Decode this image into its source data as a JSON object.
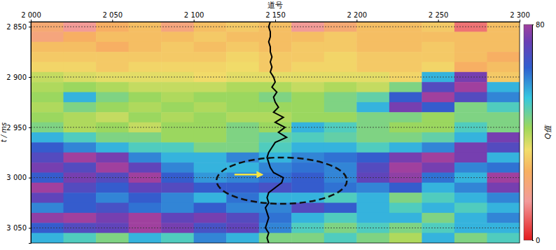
{
  "chart_data": {
    "type": "heatmap",
    "x_label": "道号",
    "y_label": "t / ms",
    "colorbar_label": "Q值",
    "xlim": [
      2000,
      2300
    ],
    "xticks": [
      {
        "value": 2000,
        "label": "2 000"
      },
      {
        "value": 2050,
        "label": "2 050"
      },
      {
        "value": 2100,
        "label": "2 100"
      },
      {
        "value": 2150,
        "label": "2 150"
      },
      {
        "value": 2200,
        "label": "2 200"
      },
      {
        "value": 2250,
        "label": "2 250"
      },
      {
        "value": 2300,
        "label": "2 300"
      }
    ],
    "ylim": [
      2845,
      3065
    ],
    "yticks": [
      {
        "value": 2850,
        "label": "2 850"
      },
      {
        "value": 2900,
        "label": "2 900"
      },
      {
        "value": 2950,
        "label": "2 950"
      },
      {
        "value": 3000,
        "label": "3 000"
      },
      {
        "value": 3050,
        "label": "3 050"
      }
    ],
    "grid": true,
    "colorbar_range": [
      0,
      80
    ],
    "colorbar_ticks": [
      0,
      80
    ],
    "x_edges": [
      2000,
      2020,
      2040,
      2060,
      2080,
      2100,
      2120,
      2140,
      2160,
      2180,
      2200,
      2220,
      2240,
      2260,
      2280,
      2300
    ],
    "t_edges": [
      2845,
      2855,
      2865,
      2875,
      2885,
      2895,
      2905,
      2915,
      2925,
      2935,
      2945,
      2955,
      2965,
      2975,
      2985,
      2995,
      3005,
      3015,
      3025,
      3035,
      3045,
      3055,
      3065
    ],
    "cells": [
      [
        22,
        15,
        25,
        28,
        20,
        28,
        30,
        28,
        15,
        22,
        28,
        28,
        30,
        10,
        28
      ],
      [
        20,
        25,
        28,
        28,
        28,
        30,
        28,
        28,
        28,
        30,
        28,
        28,
        28,
        28,
        28
      ],
      [
        28,
        28,
        25,
        28,
        30,
        28,
        30,
        28,
        30,
        30,
        28,
        28,
        30,
        28,
        28
      ],
      [
        30,
        30,
        30,
        30,
        30,
        30,
        32,
        30,
        30,
        32,
        30,
        30,
        30,
        28,
        25
      ],
      [
        32,
        32,
        30,
        32,
        32,
        32,
        33,
        30,
        32,
        32,
        30,
        30,
        32,
        25,
        28
      ],
      [
        38,
        36,
        35,
        35,
        35,
        33,
        35,
        35,
        35,
        35,
        35,
        32,
        55,
        75,
        30
      ],
      [
        40,
        42,
        40,
        38,
        38,
        38,
        40,
        40,
        38,
        40,
        38,
        45,
        70,
        80,
        55
      ],
      [
        42,
        55,
        45,
        42,
        40,
        42,
        42,
        45,
        42,
        45,
        48,
        65,
        80,
        70,
        60
      ],
      [
        40,
        45,
        42,
        40,
        42,
        40,
        42,
        42,
        42,
        45,
        55,
        75,
        65,
        45,
        50
      ],
      [
        42,
        40,
        38,
        42,
        40,
        42,
        40,
        40,
        42,
        42,
        45,
        45,
        42,
        45,
        45
      ],
      [
        45,
        40,
        42,
        38,
        42,
        42,
        45,
        42,
        55,
        50,
        45,
        42,
        42,
        50,
        45
      ],
      [
        55,
        50,
        45,
        45,
        42,
        42,
        45,
        48,
        50,
        48,
        45,
        45,
        48,
        55,
        75
      ],
      [
        65,
        60,
        55,
        50,
        50,
        45,
        45,
        50,
        55,
        55,
        50,
        55,
        60,
        75,
        70
      ],
      [
        70,
        80,
        75,
        60,
        55,
        55,
        60,
        55,
        60,
        62,
        65,
        75,
        80,
        75,
        55
      ],
      [
        75,
        70,
        80,
        72,
        60,
        55,
        55,
        60,
        62,
        60,
        70,
        80,
        75,
        60,
        62
      ],
      [
        65,
        75,
        70,
        80,
        65,
        58,
        60,
        62,
        65,
        60,
        72,
        78,
        62,
        55,
        80
      ],
      [
        80,
        70,
        65,
        72,
        70,
        65,
        65,
        68,
        65,
        62,
        60,
        65,
        55,
        60,
        75
      ],
      [
        72,
        65,
        60,
        65,
        60,
        55,
        62,
        55,
        55,
        50,
        55,
        45,
        50,
        55,
        60
      ],
      [
        60,
        65,
        68,
        62,
        60,
        65,
        60,
        60,
        70,
        65,
        55,
        50,
        55,
        50,
        55
      ],
      [
        78,
        80,
        75,
        80,
        72,
        75,
        70,
        62,
        55,
        50,
        55,
        55,
        45,
        55,
        60
      ],
      [
        65,
        70,
        72,
        80,
        75,
        68,
        72,
        60,
        50,
        45,
        50,
        45,
        50,
        55,
        55
      ],
      [
        55,
        50,
        45,
        55,
        50,
        60,
        55,
        45,
        45,
        50,
        45,
        40,
        55,
        45,
        50
      ]
    ],
    "well_log": {
      "t": [
        2845,
        2850,
        2855,
        2860,
        2865,
        2870,
        2875,
        2880,
        2885,
        2890,
        2895,
        2900,
        2905,
        2910,
        2915,
        2920,
        2925,
        2930,
        2935,
        2940,
        2945,
        2950,
        2955,
        2960,
        2965,
        2970,
        2975,
        2980,
        2985,
        2990,
        2995,
        3000,
        3005,
        3010,
        3015,
        3020,
        3025,
        3030,
        3035,
        3040,
        3045,
        3050,
        3055,
        3060,
        3065
      ],
      "trace": [
        2147,
        2146,
        2147,
        2147,
        2146,
        2147,
        2147,
        2148,
        2147,
        2148,
        2147,
        2149,
        2150,
        2148,
        2151,
        2149,
        2150,
        2152,
        2149,
        2155,
        2150,
        2156,
        2152,
        2157,
        2150,
        2148,
        2146,
        2145,
        2146,
        2147,
        2149,
        2155,
        2154,
        2150,
        2146,
        2145,
        2146,
        2144,
        2145,
        2146,
        2145,
        2144,
        2146,
        2145,
        2146
      ]
    },
    "highlight": {
      "trace_range": [
        2114,
        2194
      ],
      "t_range": [
        2980,
        3026
      ],
      "arrow_trace": [
        2125,
        2142
      ],
      "arrow_t": 2997
    }
  }
}
